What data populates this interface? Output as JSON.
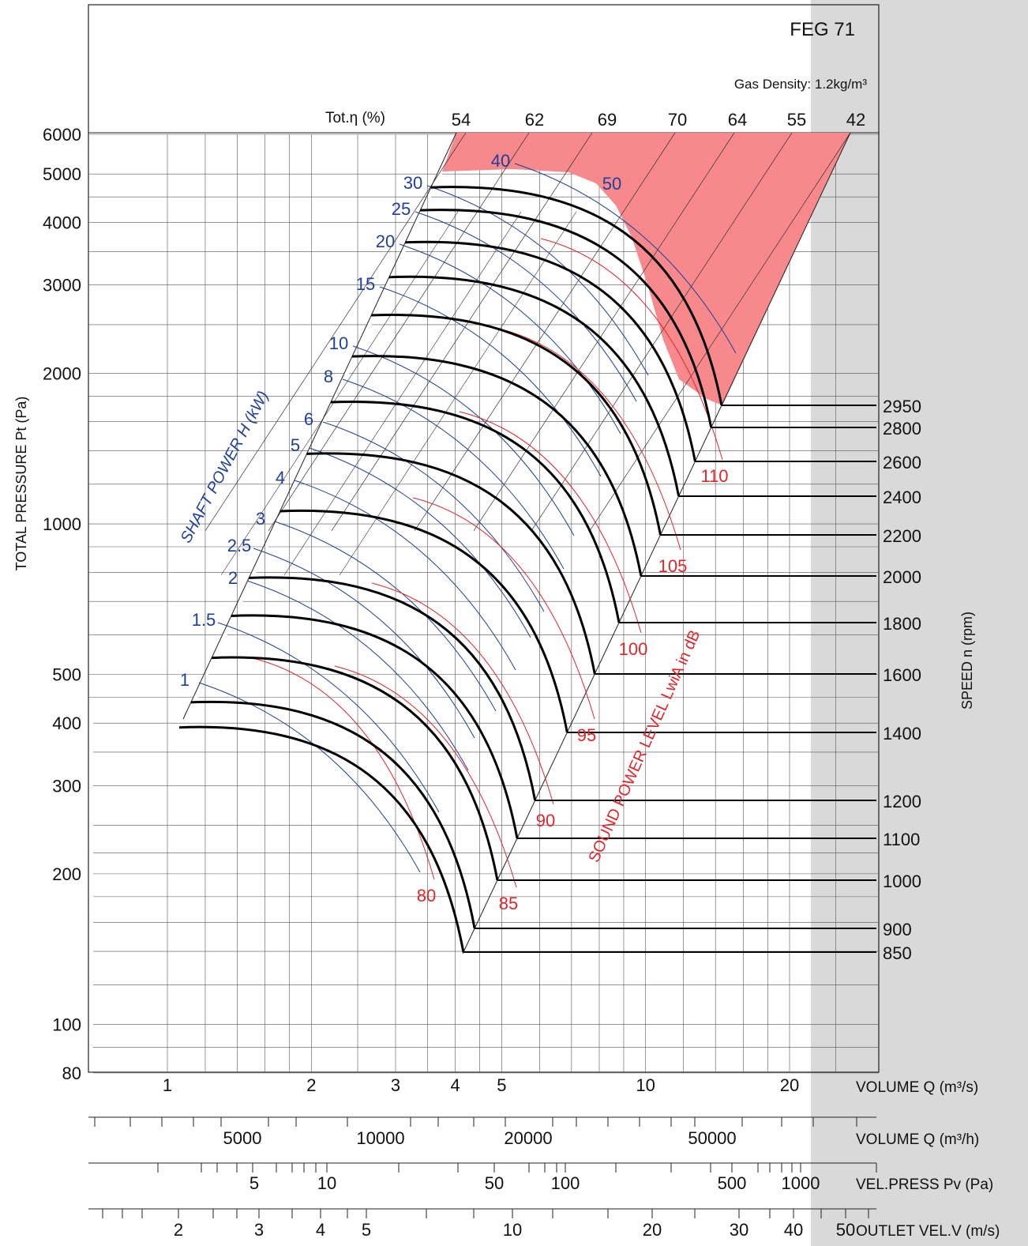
{
  "chart_data": {
    "type": "line",
    "title": "FEG 71",
    "subtitle": "Gas Density: 1.2kg/m³",
    "y_axis": {
      "label": "TOTAL PRESSURE  Pt (Pa)",
      "scale": "log",
      "range": [
        80,
        6000
      ],
      "ticks": [
        6000,
        5000,
        4000,
        3000,
        2000,
        1000,
        500,
        400,
        300,
        200,
        100,
        80
      ]
    },
    "x_axis": {
      "label": "VOLUME  Q (m³/s)",
      "scale": "log",
      "range": [
        0.8,
        30
      ],
      "ticks": [
        1,
        2,
        3,
        4,
        5,
        10,
        20
      ]
    },
    "secondary_axes": [
      {
        "label": "VOLUME  Q (m³/h)",
        "ticks": [
          5000,
          10000,
          20000,
          50000
        ]
      },
      {
        "label": "VEL.PRESS  Pv (Pa)",
        "ticks": [
          5,
          10,
          50,
          100,
          500,
          1000
        ]
      },
      {
        "label": "OUTLET VEL.V (m/s)",
        "ticks": [
          2,
          3,
          4,
          5,
          10,
          20,
          30,
          40,
          50
        ]
      }
    ],
    "speed_axis": {
      "label": "SPEED  n (rpm)",
      "speeds": [
        {
          "rpm": 2950,
          "pressure_at_start": 4700
        },
        {
          "rpm": 2800,
          "pressure_at_start": 4230
        },
        {
          "rpm": 2600,
          "pressure_at_start": 3650
        },
        {
          "rpm": 2400,
          "pressure_at_start": 3110
        },
        {
          "rpm": 2200,
          "pressure_at_start": 2610
        },
        {
          "rpm": 2000,
          "pressure_at_start": 2160
        },
        {
          "rpm": 1800,
          "pressure_at_start": 1750
        },
        {
          "rpm": 1600,
          "pressure_at_start": 1380
        },
        {
          "rpm": 1400,
          "pressure_at_start": 1060
        },
        {
          "rpm": 1200,
          "pressure_at_start": 780
        },
        {
          "rpm": 1100,
          "pressure_at_start": 655
        },
        {
          "rpm": 1000,
          "pressure_at_start": 540
        },
        {
          "rpm": 900,
          "pressure_at_start": 440
        },
        {
          "rpm": 850,
          "pressure_at_start": 392
        }
      ]
    },
    "efficiency_label": "Tot.η (%)",
    "efficiency_values": [
      "54",
      "62",
      "69",
      "70",
      "64",
      "55",
      "42"
    ],
    "shaft_power_label": "SHAFT POWER  H (kW)",
    "shaft_power_values": [
      "1",
      "1.5",
      "2",
      "2.5",
      "3",
      "4",
      "5",
      "6",
      "8",
      "10",
      "15",
      "20",
      "25",
      "30",
      "40",
      "50"
    ],
    "sound_power_label": "SOUND POWER LEVEL LwiA in dB",
    "sound_power_values": [
      "80",
      "85",
      "90",
      "95",
      "100",
      "105",
      "110"
    ]
  }
}
